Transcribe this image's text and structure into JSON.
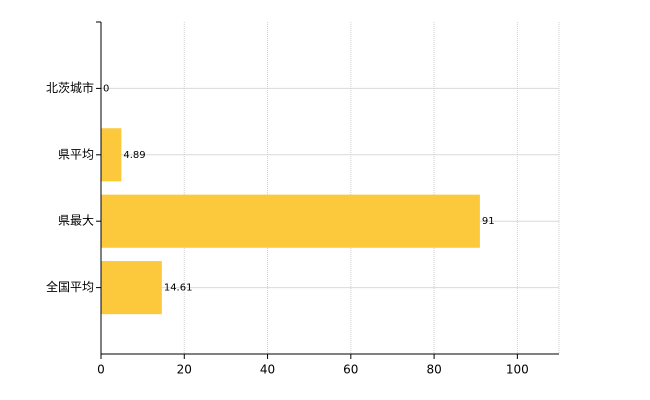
{
  "chart_data": {
    "type": "hbar",
    "categories": [
      "北茨城市",
      "県平均",
      "県最大",
      "全国平均"
    ],
    "values": [
      0,
      4.89,
      91,
      14.61
    ],
    "color": "#fbc93b",
    "xlim": [
      0,
      110
    ],
    "xticks": [
      0,
      20,
      40,
      60,
      80,
      100
    ],
    "grid": true
  }
}
